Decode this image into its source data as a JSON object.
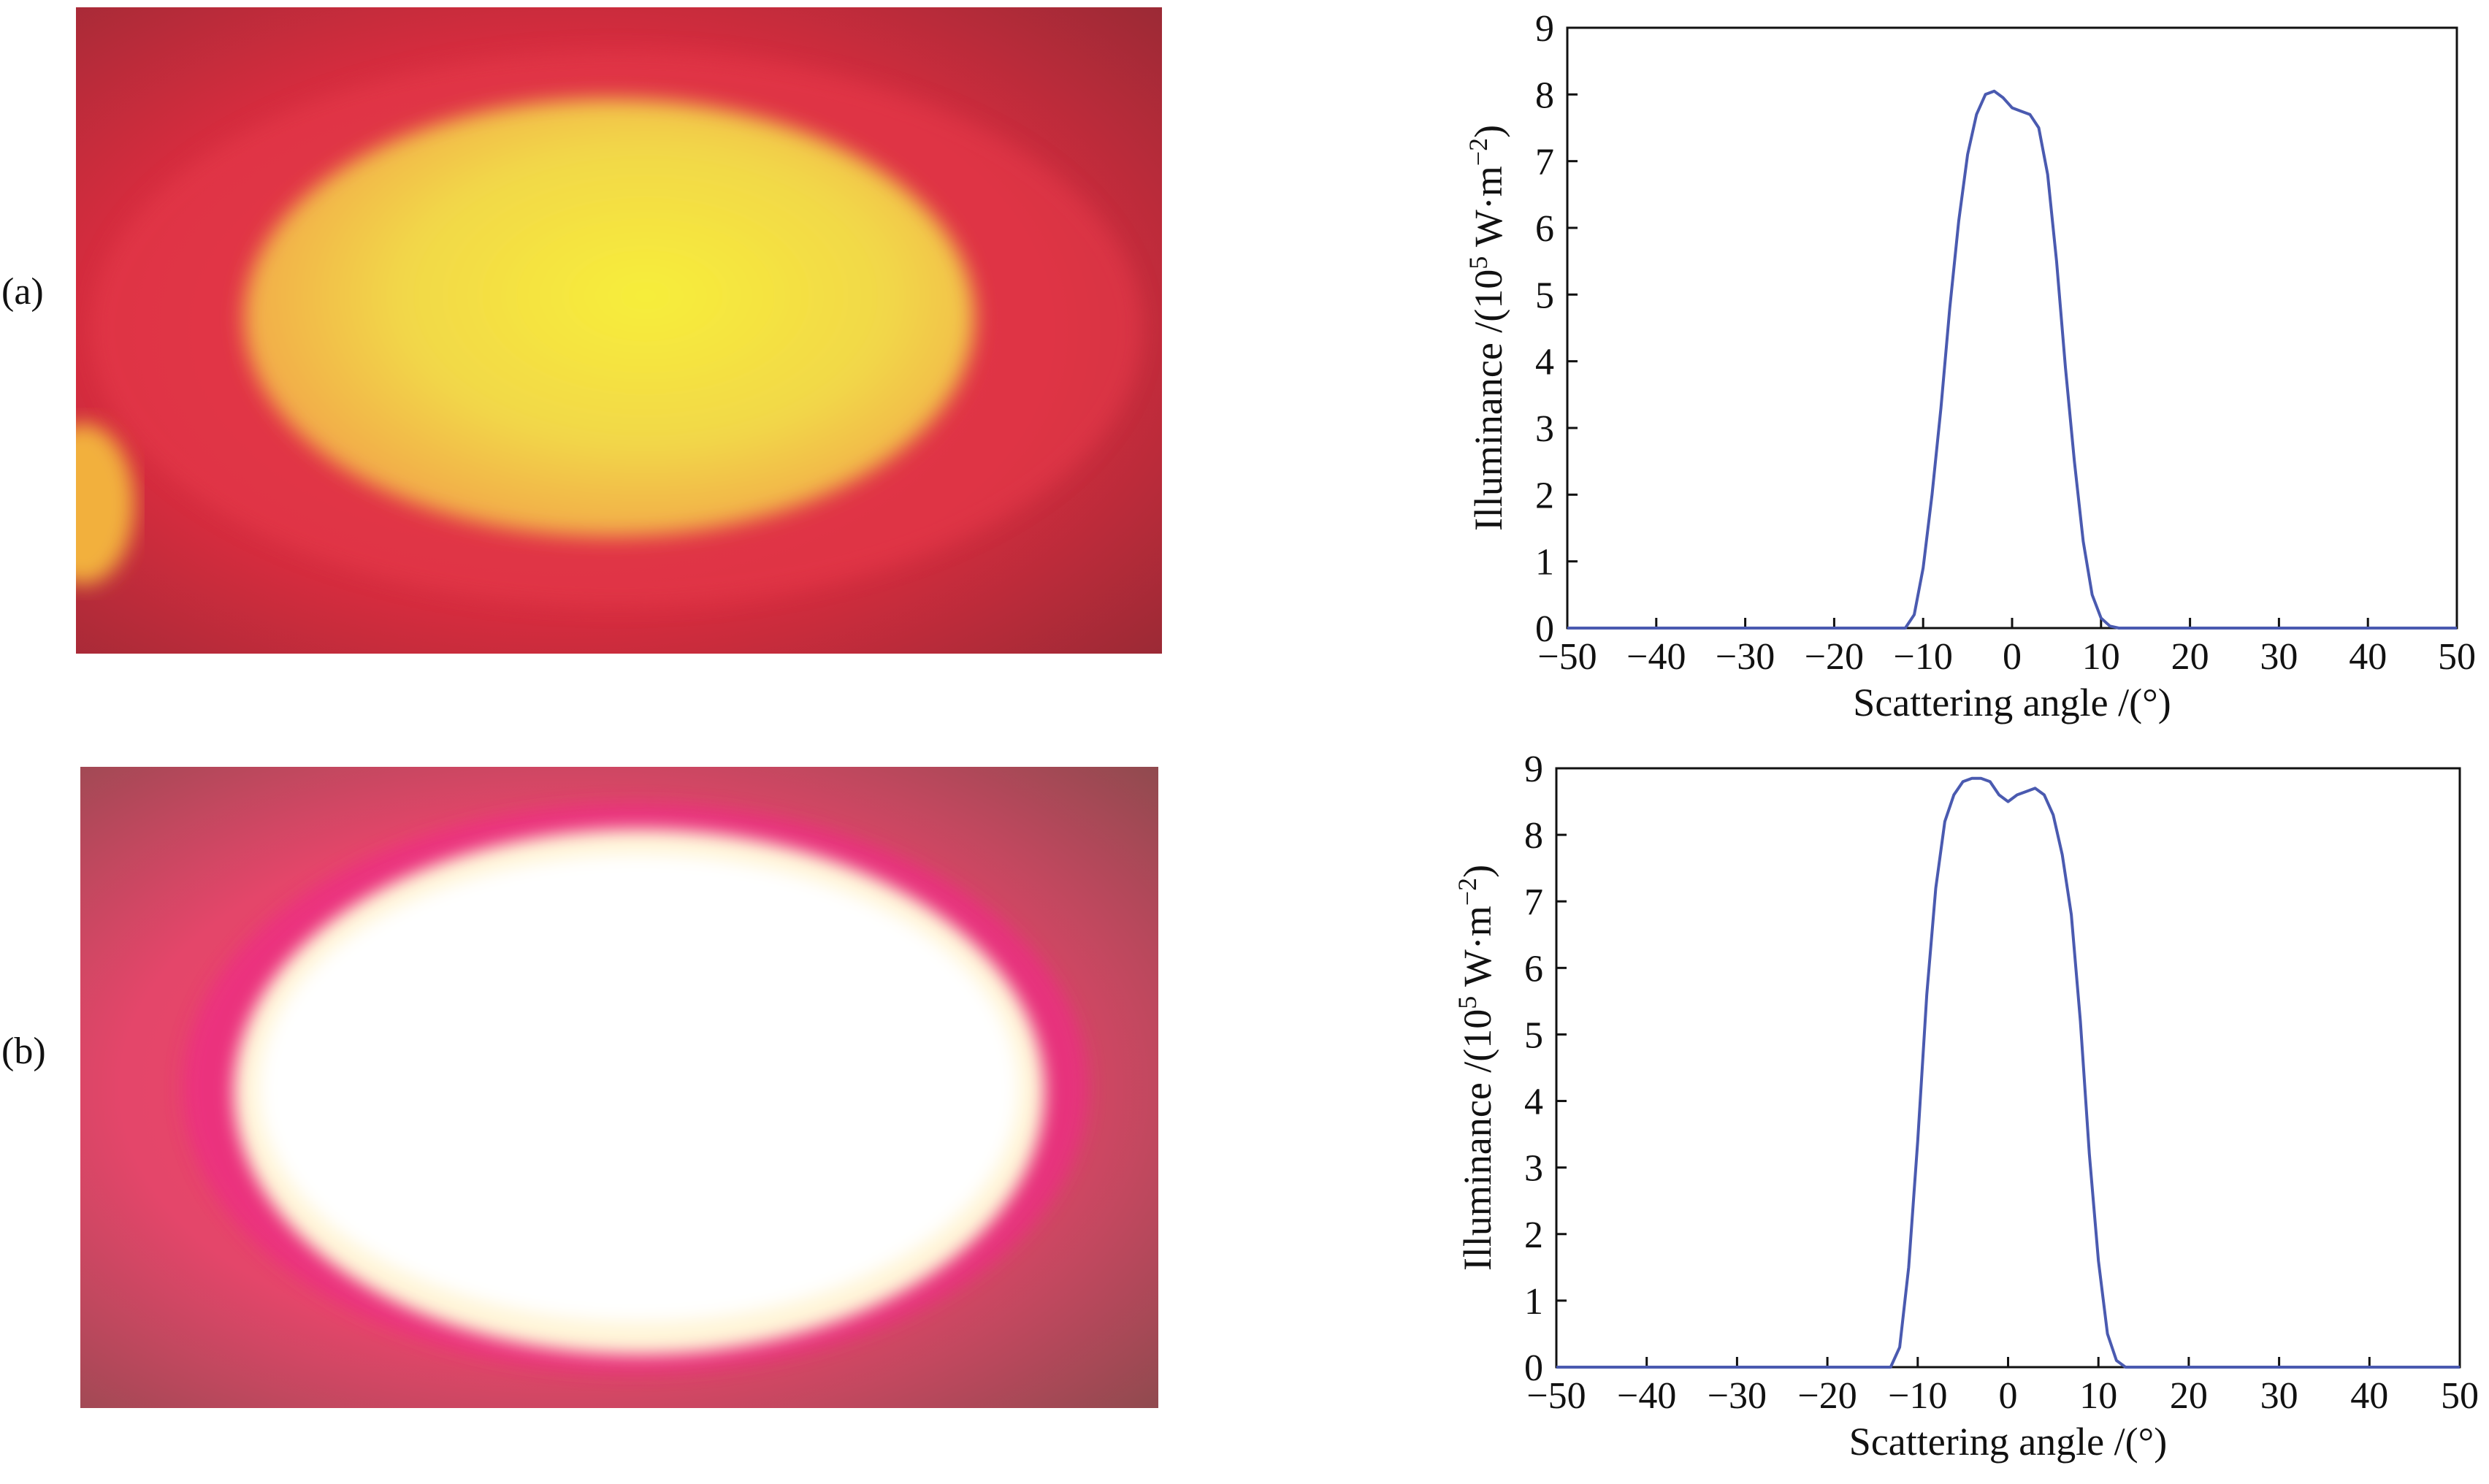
{
  "panels": [
    {
      "label": "(a)",
      "photo_desc_colors": {
        "outer": "#c42a3a",
        "mid": "#e8324a",
        "core": "#f3e24a"
      }
    },
    {
      "label": "(b)",
      "photo_desc_colors": {
        "outer": "#a84a58",
        "mid": "#e0407a",
        "core": "#ffffff"
      }
    }
  ],
  "chart_data": [
    {
      "type": "line",
      "title": "",
      "xlabel": "Scattering angle /(°)",
      "ylabel_parts": {
        "pre": "Illuminance /(10",
        "sup1": "5",
        "mid": " W·m",
        "sup2": "−2",
        "post": ")"
      },
      "xlim": [
        -50,
        50
      ],
      "ylim": [
        0,
        9
      ],
      "xticks": [
        -50,
        -40,
        -30,
        -20,
        -10,
        0,
        10,
        20,
        30,
        40,
        50
      ],
      "xtick_labels": [
        "−50",
        "−40",
        "−30",
        "−20",
        "−10",
        "0",
        "10",
        "20",
        "30",
        "40",
        "50"
      ],
      "yticks": [
        0,
        1,
        2,
        3,
        4,
        5,
        6,
        7,
        8,
        9
      ],
      "ytick_labels": [
        "0",
        "1",
        "2",
        "3",
        "4",
        "5",
        "6",
        "7",
        "8",
        "9"
      ],
      "series": [
        {
          "name": "illuminance",
          "color": "#4a5ab0",
          "x": [
            -50,
            -12,
            -11,
            -10,
            -9,
            -8,
            -7,
            -6,
            -5,
            -4,
            -3,
            -2,
            -1,
            0,
            1,
            2,
            3,
            4,
            5,
            6,
            7,
            8,
            9,
            10,
            11,
            12,
            50
          ],
          "y": [
            0,
            0,
            0.2,
            0.9,
            2.0,
            3.3,
            4.8,
            6.1,
            7.1,
            7.7,
            8.0,
            8.05,
            7.95,
            7.8,
            7.75,
            7.7,
            7.5,
            6.8,
            5.5,
            3.9,
            2.5,
            1.3,
            0.5,
            0.15,
            0.03,
            0,
            0
          ]
        }
      ]
    },
    {
      "type": "line",
      "title": "",
      "xlabel": "Scattering angle /(°)",
      "ylabel_parts": {
        "pre": "Illuminance /(10",
        "sup1": "5",
        "mid": " W·m",
        "sup2": "−2",
        "post": ")"
      },
      "xlim": [
        -50,
        50
      ],
      "ylim": [
        0,
        9
      ],
      "xticks": [
        -50,
        -40,
        -30,
        -20,
        -10,
        0,
        10,
        20,
        30,
        40,
        50
      ],
      "xtick_labels": [
        "−50",
        "−40",
        "−30",
        "−20",
        "−10",
        "0",
        "10",
        "20",
        "30",
        "40",
        "50"
      ],
      "yticks": [
        0,
        1,
        2,
        3,
        4,
        5,
        6,
        7,
        8,
        9
      ],
      "ytick_labels": [
        "0",
        "1",
        "2",
        "3",
        "4",
        "5",
        "6",
        "7",
        "8",
        "9"
      ],
      "series": [
        {
          "name": "illuminance",
          "color": "#4a5ab0",
          "x": [
            -50,
            -13,
            -12,
            -11,
            -10,
            -9,
            -8,
            -7,
            -6,
            -5,
            -4,
            -3,
            -2,
            -1,
            0,
            1,
            2,
            3,
            4,
            5,
            6,
            7,
            8,
            9,
            10,
            11,
            12,
            13,
            50
          ],
          "y": [
            0,
            0,
            0.3,
            1.5,
            3.4,
            5.6,
            7.2,
            8.2,
            8.6,
            8.8,
            8.85,
            8.85,
            8.8,
            8.6,
            8.5,
            8.6,
            8.65,
            8.7,
            8.6,
            8.3,
            7.7,
            6.8,
            5.2,
            3.2,
            1.6,
            0.5,
            0.1,
            0,
            0
          ]
        }
      ]
    }
  ]
}
